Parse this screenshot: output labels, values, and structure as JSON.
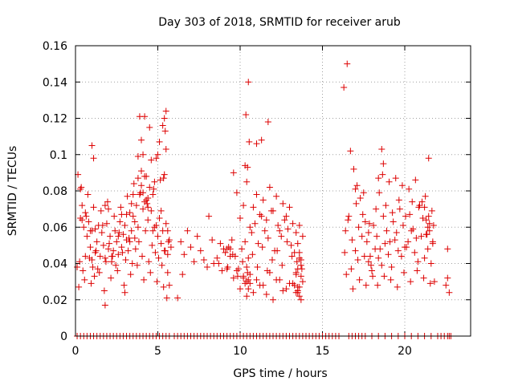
{
  "chart_data": {
    "type": "scatter",
    "title": "Day 303 of 2018, SRMTID for receiver arub",
    "xlabel": "GPS time / hours",
    "ylabel": "SRMTID / TECUs",
    "xlim": [
      0,
      24
    ],
    "ylim": [
      0,
      0.16
    ],
    "xticks": [
      0,
      5,
      10,
      15,
      20
    ],
    "yticks": [
      0,
      0.02,
      0.04,
      0.06,
      0.08,
      0.1,
      0.12,
      0.14,
      0.16
    ],
    "xtick_labels": [
      "0",
      "5",
      "10",
      "15",
      "20"
    ],
    "ytick_labels": [
      "0",
      "0.02",
      "0.04",
      "0.06",
      "0.08",
      "0.1",
      "0.12",
      "0.14",
      "0.16"
    ],
    "grid": true,
    "marker": "+",
    "color": "#dd0000",
    "series": [
      {
        "name": "SRMTID",
        "x": [
          0.15,
          0.3,
          0.4,
          0.5,
          0.6,
          0.7,
          0.8,
          0.9,
          1.0,
          1.1,
          1.2,
          1.3,
          1.4,
          1.5,
          1.6,
          1.7,
          1.8,
          1.9,
          2.0,
          2.1,
          2.2,
          2.3,
          2.4,
          2.5,
          2.6,
          2.7,
          2.8,
          2.9,
          3.0,
          3.1,
          3.2,
          3.3,
          3.4,
          3.5,
          3.6,
          3.7,
          3.8,
          3.9,
          4.0,
          4.1,
          4.2,
          4.3,
          4.4,
          4.5,
          4.6,
          4.7,
          4.8,
          4.9,
          5.0,
          5.1,
          5.2,
          5.3,
          5.4,
          5.5,
          5.6,
          5.7,
          5.8,
          0.25,
          0.45,
          0.65,
          0.85,
          1.05,
          1.25,
          1.45,
          1.65,
          1.85,
          2.05,
          2.25,
          2.45,
          2.65,
          2.85,
          3.05,
          3.25,
          3.45,
          3.65,
          3.85,
          4.05,
          4.25,
          4.45,
          4.65,
          4.85,
          5.05,
          5.25,
          5.45,
          5.65,
          0.2,
          0.55,
          0.95,
          1.15,
          1.35,
          1.75,
          2.15,
          2.55,
          2.95,
          3.35,
          3.75,
          4.15,
          4.55,
          4.95,
          5.35,
          5.55,
          0.35,
          0.75,
          1.55,
          1.95,
          2.35,
          2.75,
          3.15,
          3.55,
          3.95,
          4.35,
          4.75,
          5.15,
          0.1,
          0.6,
          1.0,
          1.8,
          2.6,
          3.0,
          3.4,
          3.8,
          4.2,
          4.6,
          5.0,
          5.4,
          0.4,
          1.2,
          2.0,
          2.8,
          3.6,
          4.4,
          5.2,
          5.6,
          1.0,
          1.1,
          3.9,
          4.0,
          4.1,
          4.3,
          4.5,
          4.7,
          4.9,
          5.1,
          5.3,
          5.4,
          5.5,
          5.45,
          5.5,
          5.35,
          4.0,
          4.1,
          4.2,
          3.5,
          3.8,
          0.3,
          0.9,
          1.8,
          2.2,
          3.1,
          3.3,
          4.4,
          4.8,
          5.6,
          5.7,
          6.2,
          6.4,
          6.6,
          6.8,
          7.0,
          7.2,
          7.4,
          7.6,
          8.0,
          8.3,
          8.6,
          8.9,
          9.2,
          8.4,
          8.8,
          9.1,
          6.5,
          7.8,
          8.1,
          8.7,
          9.0,
          9.2,
          9.4,
          9.6,
          9.8,
          10.0,
          10.2,
          10.4,
          10.6,
          10.8,
          11.0,
          11.2,
          11.4,
          11.6,
          11.8,
          12.0,
          12.2,
          12.4,
          12.6,
          12.8,
          13.0,
          13.2,
          13.4,
          13.6,
          13.8,
          9.3,
          9.5,
          9.7,
          9.9,
          10.1,
          10.3,
          10.5,
          10.7,
          10.9,
          11.1,
          11.3,
          11.5,
          11.7,
          11.9,
          12.1,
          12.3,
          12.5,
          12.7,
          12.9,
          13.1,
          13.3,
          13.5,
          13.7,
          9.25,
          9.55,
          9.85,
          10.15,
          10.45,
          10.75,
          11.05,
          11.35,
          11.65,
          11.95,
          12.25,
          12.55,
          12.85,
          13.15,
          13.45,
          13.75,
          9.4,
          9.8,
          10.2,
          10.6,
          11.0,
          11.4,
          11.8,
          12.2,
          12.6,
          13.0,
          13.4,
          13.6,
          9.6,
          10.0,
          10.4,
          10.8,
          11.2,
          11.6,
          12.0,
          12.4,
          12.8,
          13.2,
          13.5,
          13.7,
          13.3,
          13.4,
          13.5,
          13.6,
          13.7,
          13.8,
          13.5,
          13.6,
          13.7,
          13.4,
          13.6,
          13.5,
          10.2,
          10.3,
          10.4,
          10.5,
          10.6,
          10.4,
          10.5,
          10.3,
          10.45,
          10.55,
          11.0,
          11.3,
          11.7,
          10.35,
          10.5,
          16.3,
          16.5,
          16.7,
          16.9,
          17.1,
          17.3,
          17.5,
          17.7,
          17.9,
          18.1,
          18.3,
          18.5,
          18.7,
          18.9,
          19.1,
          19.3,
          19.5,
          19.7,
          19.9,
          20.1,
          20.3,
          20.5,
          20.7,
          20.9,
          21.1,
          21.3,
          21.5,
          21.7,
          16.4,
          16.6,
          16.8,
          17.0,
          17.2,
          17.4,
          17.6,
          17.8,
          18.0,
          18.2,
          18.4,
          18.6,
          18.8,
          19.0,
          19.2,
          19.4,
          19.6,
          19.8,
          20.0,
          20.2,
          20.4,
          20.6,
          20.8,
          21.0,
          21.2,
          21.4,
          21.6,
          16.35,
          16.75,
          17.15,
          17.55,
          17.95,
          18.35,
          18.75,
          19.15,
          19.55,
          19.95,
          20.35,
          20.75,
          21.15,
          21.55,
          16.45,
          16.85,
          17.25,
          17.65,
          18.05,
          18.45,
          18.85,
          19.25,
          19.65,
          20.05,
          20.45,
          20.85,
          21.25,
          21.65,
          16.55,
          17.05,
          17.45,
          17.85,
          18.25,
          18.65,
          19.05,
          19.45,
          19.85,
          20.25,
          20.65,
          21.05,
          21.45,
          21.75,
          21.2,
          21.3,
          21.4,
          21.5,
          21.35,
          21.45,
          18.6,
          18.7,
          18.4,
          17.0,
          17.8,
          21.7,
          21.8,
          22.5,
          22.6,
          22.7,
          22.6,
          22.7,
          0.1,
          0.3,
          0.5,
          0.7,
          0.9,
          1.1,
          1.3,
          1.5,
          1.7,
          1.9,
          2.1,
          2.3,
          2.5,
          2.7,
          2.9,
          3.1,
          3.3,
          3.5,
          3.7,
          3.9,
          4.1,
          4.3,
          4.5,
          4.7,
          4.9,
          5.1,
          5.3,
          5.5,
          5.7,
          6.0,
          6.2,
          6.4,
          6.6,
          6.8,
          7.0,
          7.2,
          7.4,
          7.6,
          7.8,
          8.0,
          8.2,
          8.4,
          8.6,
          8.8,
          9.0,
          9.2,
          9.4,
          9.6,
          9.8,
          10.0,
          10.2,
          10.4,
          10.6,
          10.8,
          11.0,
          11.2,
          11.4,
          11.6,
          11.8,
          12.0,
          12.2,
          12.4,
          12.6,
          12.8,
          13.0,
          13.2,
          13.4,
          13.6,
          13.8,
          14.0,
          14.2,
          14.4,
          14.6,
          14.8,
          15.0,
          15.2,
          15.4,
          15.6,
          15.8,
          16.0,
          16.6,
          16.8,
          17.0,
          17.2,
          17.4,
          17.6,
          18.0,
          18.4,
          18.8,
          19.2,
          19.6,
          20.0,
          20.4,
          20.8,
          21.2,
          21.6,
          22.0,
          22.2,
          22.4,
          22.6,
          22.8
        ],
        "y": [
          0.089,
          0.065,
          0.072,
          0.06,
          0.068,
          0.055,
          0.063,
          0.049,
          0.058,
          0.071,
          0.046,
          0.052,
          0.061,
          0.044,
          0.057,
          0.05,
          0.043,
          0.062,
          0.048,
          0.055,
          0.041,
          0.047,
          0.058,
          0.052,
          0.045,
          0.063,
          0.049,
          0.056,
          0.061,
          0.053,
          0.047,
          0.068,
          0.058,
          0.066,
          0.054,
          0.072,
          0.06,
          0.078,
          0.083,
          0.07,
          0.088,
          0.075,
          0.064,
          0.082,
          0.069,
          0.058,
          0.085,
          0.061,
          0.055,
          0.065,
          0.051,
          0.058,
          0.047,
          0.062,
          0.045,
          0.053,
          0.049,
          0.041,
          0.036,
          0.066,
          0.043,
          0.038,
          0.047,
          0.035,
          0.061,
          0.041,
          0.051,
          0.044,
          0.039,
          0.057,
          0.046,
          0.042,
          0.054,
          0.04,
          0.048,
          0.052,
          0.044,
          0.058,
          0.041,
          0.05,
          0.046,
          0.043,
          0.039,
          0.047,
          0.052,
          0.027,
          0.031,
          0.029,
          0.033,
          0.037,
          0.025,
          0.032,
          0.036,
          0.028,
          0.034,
          0.039,
          0.031,
          0.035,
          0.03,
          0.027,
          0.021,
          0.082,
          0.078,
          0.069,
          0.074,
          0.066,
          0.071,
          0.077,
          0.084,
          0.079,
          0.073,
          0.081,
          0.086,
          0.038,
          0.044,
          0.042,
          0.017,
          0.055,
          0.024,
          0.073,
          0.099,
          0.121,
          0.097,
          0.1,
          0.089,
          0.064,
          0.059,
          0.07,
          0.067,
          0.063,
          0.076,
          0.069,
          0.058,
          0.105,
          0.098,
          0.121,
          0.108,
          0.1,
          0.088,
          0.115,
          0.078,
          0.098,
          0.107,
          0.116,
          0.12,
          0.124,
          0.113,
          0.103,
          0.087,
          0.091,
          0.079,
          0.074,
          0.078,
          0.087,
          0.081,
          0.058,
          0.072,
          0.044,
          0.067,
          0.052,
          0.071,
          0.06,
          0.035,
          0.028,
          0.021,
          0.052,
          0.045,
          0.058,
          0.049,
          0.041,
          0.055,
          0.047,
          0.038,
          0.053,
          0.043,
          0.036,
          0.048,
          0.04,
          0.051,
          0.046,
          0.034,
          0.042,
          0.066,
          0.04,
          0.048,
          0.037,
          0.044,
          0.09,
          0.079,
          0.065,
          0.072,
          0.085,
          0.06,
          0.071,
          0.078,
          0.067,
          0.075,
          0.064,
          0.082,
          0.069,
          0.077,
          0.058,
          0.073,
          0.066,
          0.071,
          0.062,
          0.057,
          0.061,
          0.055,
          0.049,
          0.053,
          0.044,
          0.037,
          0.048,
          0.052,
          0.043,
          0.057,
          0.062,
          0.051,
          0.066,
          0.058,
          0.054,
          0.069,
          0.047,
          0.061,
          0.055,
          0.064,
          0.059,
          0.05,
          0.046,
          0.051,
          0.042,
          0.038,
          0.045,
          0.033,
          0.041,
          0.035,
          0.045,
          0.038,
          0.049,
          0.036,
          0.042,
          0.047,
          0.039,
          0.052,
          0.044,
          0.041,
          0.037,
          0.048,
          0.036,
          0.033,
          0.029,
          0.031,
          0.028,
          0.035,
          0.031,
          0.025,
          0.029,
          0.034,
          0.027,
          0.032,
          0.026,
          0.03,
          0.024,
          0.028,
          0.023,
          0.02,
          0.031,
          0.026,
          0.029,
          0.025,
          0.033,
          0.028,
          0.024,
          0.027,
          0.022,
          0.02,
          0.03,
          0.024,
          0.046,
          0.039,
          0.035,
          0.043,
          0.037,
          0.032,
          0.029,
          0.038,
          0.026,
          0.034,
          0.022,
          0.031,
          0.094,
          0.093,
          0.107,
          0.106,
          0.108,
          0.118,
          0.122,
          0.14,
          0.137,
          0.15,
          0.102,
          0.092,
          0.083,
          0.076,
          0.079,
          0.052,
          0.044,
          0.061,
          0.055,
          0.048,
          0.066,
          0.058,
          0.052,
          0.063,
          0.057,
          0.07,
          0.061,
          0.049,
          0.067,
          0.059,
          0.054,
          0.072,
          0.065,
          0.056,
          0.062,
          0.051,
          0.058,
          0.066,
          0.053,
          0.047,
          0.06,
          0.055,
          0.063,
          0.041,
          0.036,
          0.048,
          0.043,
          0.039,
          0.051,
          0.045,
          0.038,
          0.053,
          0.047,
          0.044,
          0.049,
          0.052,
          0.058,
          0.046,
          0.041,
          0.055,
          0.043,
          0.048,
          0.04,
          0.046,
          0.037,
          0.042,
          0.044,
          0.039,
          0.028,
          0.033,
          0.031,
          0.027,
          0.035,
          0.03,
          0.036,
          0.032,
          0.029,
          0.034,
          0.026,
          0.031,
          0.028,
          0.033,
          0.079,
          0.072,
          0.068,
          0.075,
          0.066,
          0.074,
          0.071,
          0.077,
          0.069,
          0.064,
          0.073,
          0.067,
          0.062,
          0.07,
          0.089,
          0.085,
          0.087,
          0.083,
          0.081,
          0.086,
          0.074,
          0.066,
          0.061,
          0.071,
          0.064,
          0.06,
          0.058,
          0.056,
          0.098,
          0.103,
          0.095,
          0.087,
          0.081,
          0.057,
          0.052,
          0.03,
          0.028,
          0.032,
          0.024,
          0.048,
          0,
          0,
          0,
          0,
          0,
          0,
          0,
          0,
          0,
          0,
          0,
          0,
          0,
          0,
          0,
          0,
          0,
          0,
          0,
          0,
          0,
          0,
          0,
          0,
          0,
          0,
          0,
          0,
          0,
          0,
          0,
          0,
          0,
          0,
          0,
          0,
          0,
          0,
          0,
          0,
          0,
          0,
          0,
          0,
          0,
          0,
          0,
          0,
          0,
          0,
          0,
          0,
          0,
          0,
          0,
          0,
          0,
          0,
          0,
          0,
          0,
          0,
          0,
          0,
          0,
          0,
          0,
          0,
          0,
          0,
          0,
          0,
          0,
          0,
          0,
          0,
          0,
          0,
          0,
          0,
          0,
          0,
          0,
          0,
          0,
          0,
          0,
          0,
          0,
          0,
          0,
          0,
          0,
          0,
          0,
          0,
          0,
          0,
          0,
          0,
          0,
          0
        ]
      }
    ]
  }
}
